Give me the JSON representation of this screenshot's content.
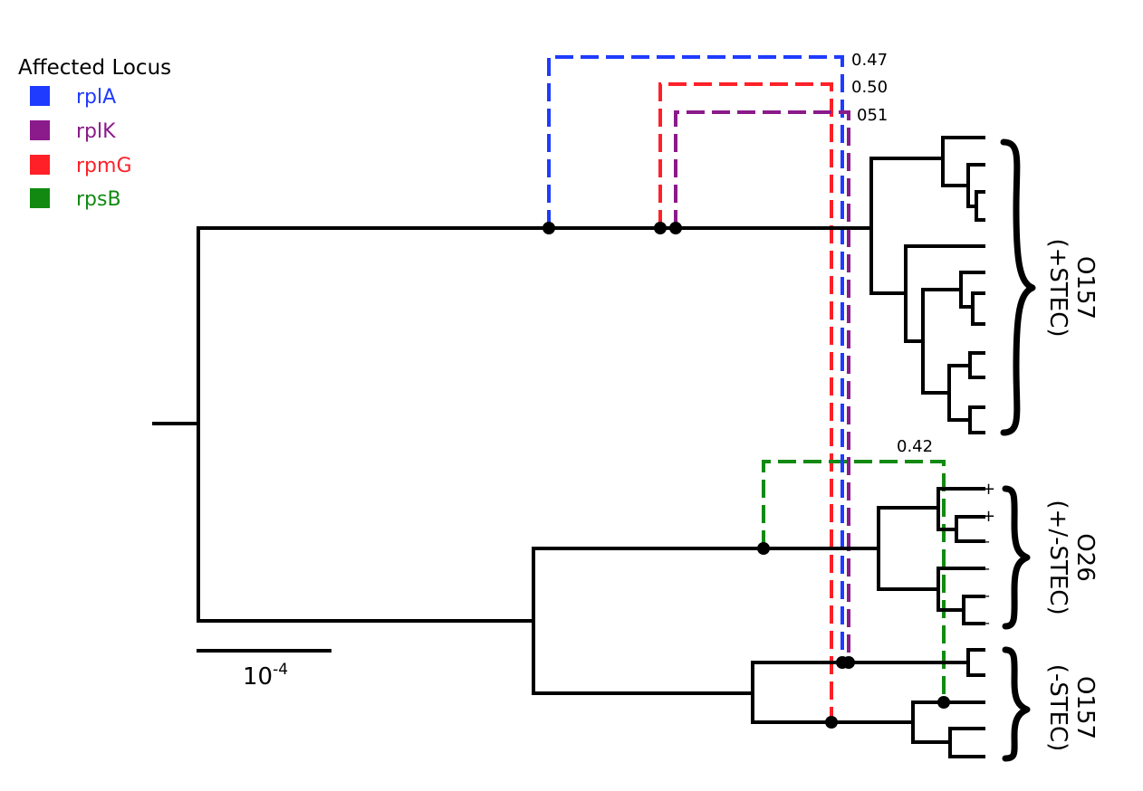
{
  "legend": {
    "title": "Affected Locus",
    "items": [
      {
        "label": "rplA",
        "color": "#1f3bff"
      },
      {
        "label": "rplK",
        "color": "#8b1a8b"
      },
      {
        "label": "rpmG",
        "color": "#ff2028"
      },
      {
        "label": "rpsB",
        "color": "#128a12"
      }
    ]
  },
  "homoplasy_values": {
    "rplA": "0.47",
    "rpmG": "0.50",
    "rplK": "051",
    "rpsB": "0.42"
  },
  "stx_signs": [
    "+",
    "+",
    "–",
    "–",
    "–",
    "–"
  ],
  "clades": {
    "o157_pos": {
      "serotype": "O157",
      "status": "(+STEC)"
    },
    "o26": {
      "serotype": "O26",
      "status": "(+/-STEC)"
    },
    "o157_neg": {
      "serotype": "O157",
      "status": "(-STEC)"
    }
  },
  "scale_bar": {
    "base": "10",
    "exponent": "-4"
  }
}
